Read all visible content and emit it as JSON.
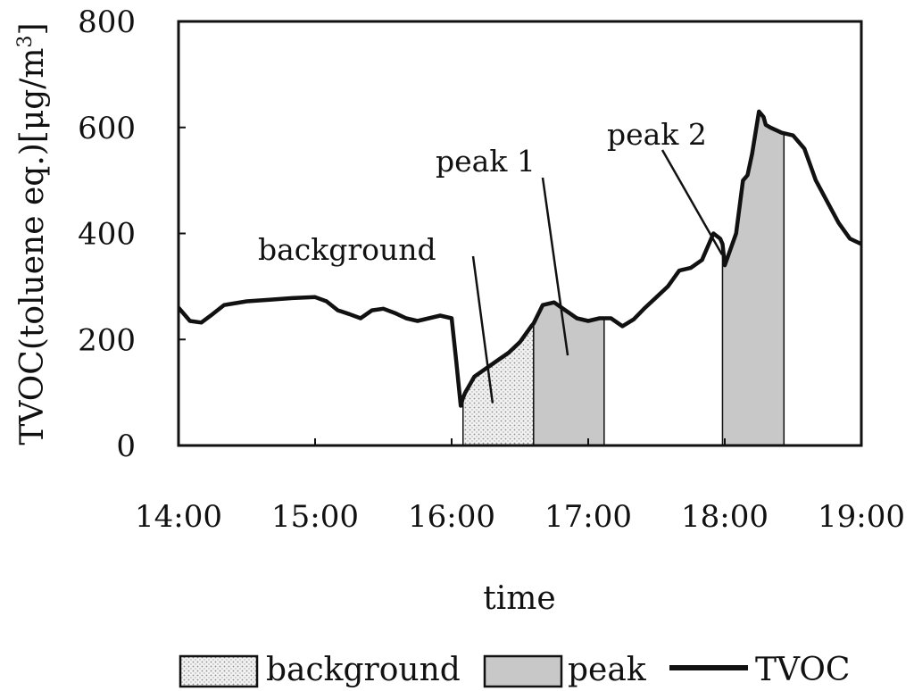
{
  "chart_data": {
    "type": "line",
    "title": "",
    "xlabel": "time",
    "ylabel": "TVOC(toluene eq.)[μg/m³]",
    "ylabel_main": "TVOC(toluene eq.)[μg/m",
    "ylabel_sup": "3",
    "ylabel_end": "]",
    "xlim_hours": [
      14,
      19
    ],
    "ylim": [
      0,
      800
    ],
    "x_ticks": [
      "14:00",
      "15:00",
      "16:00",
      "17:00",
      "18:00",
      "19:00"
    ],
    "y_ticks": [
      "0",
      "200",
      "400",
      "600",
      "800"
    ],
    "grid": false,
    "legend_placement": "bottom",
    "legend": [
      {
        "label": "background",
        "kind": "dotted-fill"
      },
      {
        "label": "peak",
        "kind": "gray-fill"
      },
      {
        "label": "TVOC",
        "kind": "line"
      }
    ],
    "series": [
      {
        "name": "TVOC",
        "x": [
          "14:00",
          "14:05",
          "14:10",
          "14:15",
          "14:20",
          "14:30",
          "14:40",
          "14:50",
          "15:00",
          "15:05",
          "15:10",
          "15:15",
          "15:20",
          "15:25",
          "15:30",
          "15:35",
          "15:40",
          "15:45",
          "15:50",
          "15:55",
          "16:00",
          "16:02",
          "16:04",
          "16:05",
          "16:06",
          "16:08",
          "16:10",
          "16:15",
          "16:20",
          "16:25",
          "16:30",
          "16:35",
          "16:36",
          "16:40",
          "16:45",
          "16:50",
          "16:55",
          "17:00",
          "17:05",
          "17:10",
          "17:15",
          "17:20",
          "17:25",
          "17:30",
          "17:35",
          "17:40",
          "17:45",
          "17:50",
          "17:55",
          "17:58",
          "17:59",
          "18:00",
          "18:05",
          "18:08",
          "18:10",
          "18:12",
          "18:15",
          "18:17",
          "18:18",
          "18:20",
          "18:25",
          "18:30",
          "18:35",
          "18:40",
          "18:45",
          "18:50",
          "18:55",
          "19:00"
        ],
        "y": [
          260,
          235,
          232,
          248,
          265,
          272,
          275,
          278,
          280,
          272,
          255,
          248,
          240,
          255,
          258,
          250,
          240,
          235,
          240,
          245,
          240,
          160,
          75,
          90,
          100,
          115,
          130,
          145,
          160,
          175,
          195,
          225,
          230,
          265,
          270,
          255,
          240,
          235,
          240,
          240,
          225,
          238,
          260,
          280,
          300,
          330,
          335,
          350,
          400,
          390,
          380,
          340,
          400,
          500,
          510,
          550,
          630,
          620,
          605,
          600,
          590,
          585,
          560,
          500,
          460,
          420,
          390,
          380
        ]
      }
    ],
    "regions": [
      {
        "name": "background",
        "start": "16:05",
        "end": "16:36",
        "fill": "dotted"
      },
      {
        "name": "peak 1",
        "start": "16:36",
        "end": "17:07",
        "fill": "gray"
      },
      {
        "name": "peak 2",
        "start": "17:59",
        "end": "18:26",
        "fill": "gray"
      }
    ],
    "annotations": [
      {
        "text": "background",
        "points_to": "background"
      },
      {
        "text": "peak 1",
        "points_to": "peak 1"
      },
      {
        "text": "peak 2",
        "points_to": "peak 2"
      }
    ],
    "colors": {
      "line": "#111111",
      "peak_fill": "#c8c8c8",
      "background_fill": "#e6e6e6",
      "axis": "#111111"
    }
  }
}
